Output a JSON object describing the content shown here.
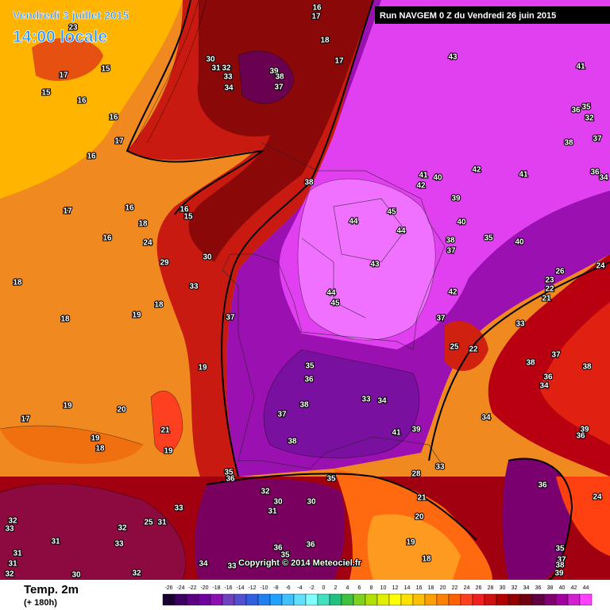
{
  "header": {
    "date": "Vendredi 3 juillet 2015",
    "time": "14:00 locale",
    "run": "Run NAVGEM 0 Z du Vendredi 26 juin 2015"
  },
  "footer": {
    "copyright": "Copyright © 2014 Meteociel.fr"
  },
  "legend": {
    "title": "Temp. 2m",
    "subtitle": "(+ 180h)",
    "ticks": [
      -26,
      -24,
      -22,
      -20,
      -18,
      -16,
      -14,
      -12,
      -10,
      -8,
      -6,
      -4,
      -2,
      0,
      2,
      4,
      6,
      8,
      10,
      12,
      14,
      16,
      18,
      20,
      22,
      24,
      26,
      28,
      30,
      32,
      34,
      36,
      38,
      40,
      42,
      44
    ],
    "colors": [
      "#1a0030",
      "#3c0060",
      "#5a0080",
      "#7000a0",
      "#8a10b0",
      "#7040c0",
      "#5050d0",
      "#3060e0",
      "#2080f0",
      "#20a0ff",
      "#40c0ff",
      "#60e0ff",
      "#80ffff",
      "#40e0c0",
      "#20c080",
      "#40c040",
      "#80d020",
      "#b0e000",
      "#e0f000",
      "#ffff00",
      "#ffe000",
      "#ffc000",
      "#ffa000",
      "#ff8000",
      "#ff6000",
      "#ff4020",
      "#f02020",
      "#d01010",
      "#b00000",
      "#900000",
      "#700010",
      "#600040",
      "#800070",
      "#a000a0",
      "#d020d0",
      "#ff40ff"
    ]
  },
  "map_labels": [
    23,
    17,
    15,
    15,
    16,
    16,
    17,
    16,
    17,
    16,
    16,
    15,
    18,
    16,
    24,
    29,
    30,
    33,
    18,
    18,
    19,
    18,
    19,
    19,
    20,
    17,
    21,
    19,
    18,
    19,
    30,
    31,
    32,
    33,
    34,
    39,
    38,
    37,
    17,
    18,
    16,
    17,
    43,
    41,
    36,
    35,
    32,
    37,
    38,
    42,
    41,
    36,
    34,
    41,
    42,
    40,
    39,
    38,
    44,
    45,
    44,
    40,
    38,
    37,
    35,
    40,
    43,
    44,
    45,
    42,
    37,
    24,
    26,
    23,
    22,
    21,
    33,
    25,
    22,
    37,
    35,
    36,
    38,
    37,
    33,
    34,
    37,
    38,
    36,
    34,
    38,
    34,
    41,
    39,
    39,
    36,
    38,
    35,
    36,
    35,
    33,
    28,
    32,
    30,
    30,
    31,
    21,
    20,
    36,
    24,
    32,
    33,
    32,
    25,
    31,
    33,
    19,
    31,
    33,
    36,
    36,
    35,
    35,
    37,
    31,
    31,
    34,
    33,
    18,
    38,
    39,
    32,
    30,
    32
  ]
}
